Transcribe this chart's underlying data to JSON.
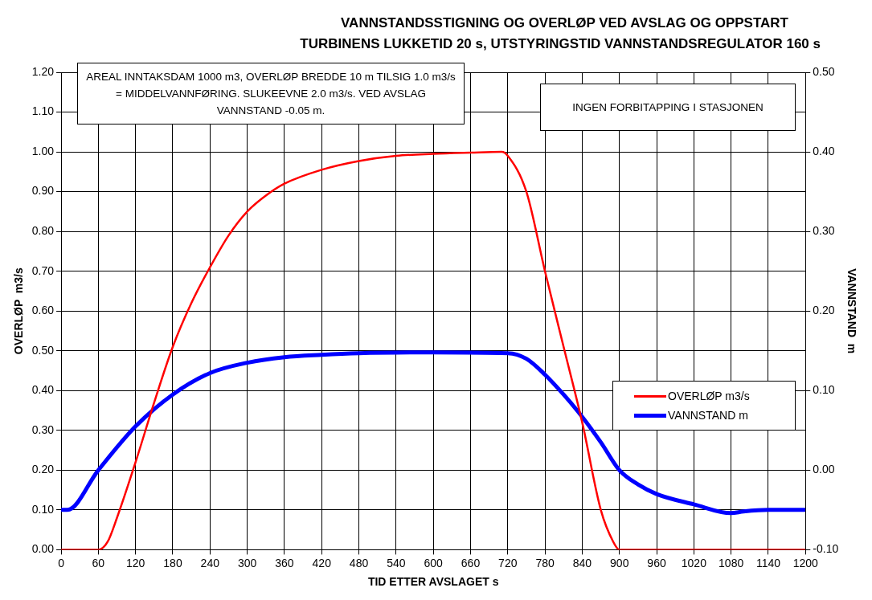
{
  "chart_data": {
    "type": "line",
    "title": "VANNSTANDSSTIGNING OG OVERLØP VED AVSLAG OG OPPSTART",
    "subtitle": "TURBINENS LUKKETID 20 s, UTSTYRINGSTID VANNSTANDSREGULATOR 160 s",
    "xlabel": "TID ETTER AVSLAGET s",
    "ylabel": "OVERLØP  m3/s",
    "y2label": "VANNSTAND  m",
    "annotations": [
      "AREAL INNTAKSDAM 1000 m3, OVERLØP BREDDE 10 m TILSIG 1.0 m3/s = MIDDELVANNFØRING. SLUKEEVNE 2.0 m3/s. VED AVSLAG VANNSTAND -0.05 m.",
      "INGEN FORBITAPPING I STASJONEN"
    ],
    "xlim": [
      0,
      1200
    ],
    "xticks": [
      0,
      60,
      120,
      180,
      240,
      300,
      360,
      420,
      480,
      540,
      600,
      660,
      720,
      780,
      840,
      900,
      960,
      1020,
      1080,
      1140,
      1200
    ],
    "ylim": [
      0,
      1.2
    ],
    "yticks": [
      {
        "value": 0,
        "label": "0.00"
      },
      {
        "value": 0.1,
        "label": "0.10"
      },
      {
        "value": 0.2,
        "label": "0.20"
      },
      {
        "value": 0.3,
        "label": "0.30"
      },
      {
        "value": 0.4,
        "label": "0.40"
      },
      {
        "value": 0.5,
        "label": "0.50"
      },
      {
        "value": 0.6,
        "label": "0.60"
      },
      {
        "value": 0.7,
        "label": "0.70"
      },
      {
        "value": 0.8,
        "label": "0.80"
      },
      {
        "value": 0.9,
        "label": "0.90"
      },
      {
        "value": 1,
        "label": "1.00"
      },
      {
        "value": 1.1,
        "label": "1.10"
      },
      {
        "value": 1.2,
        "label": "1.20"
      }
    ],
    "y2lim": [
      -0.1,
      0.5
    ],
    "y2ticks": [
      {
        "value": -0.1,
        "label": "-0.10"
      },
      {
        "value": 0,
        "label": "0.00"
      },
      {
        "value": 0.1,
        "label": "0.10"
      },
      {
        "value": 0.2,
        "label": "0.20"
      },
      {
        "value": 0.3,
        "label": "0.30"
      },
      {
        "value": 0.4,
        "label": "0.40"
      },
      {
        "value": 0.5,
        "label": "0.50"
      }
    ],
    "grid": true,
    "legend": "right",
    "marker": "none",
    "line_style": "solid",
    "series": [
      {
        "name": "OVERLØP m3/s",
        "color": "#ff0000",
        "x": [
          0,
          60,
          75,
          90,
          120,
          150,
          180,
          210,
          240,
          270,
          300,
          330,
          360,
          420,
          480,
          540,
          600,
          660,
          710,
          720,
          750,
          780,
          810,
          840,
          870,
          890,
          900,
          1200
        ],
        "values": [
          0,
          0,
          0.02,
          0.08,
          0.22,
          0.37,
          0.51,
          0.62,
          0.71,
          0.79,
          0.85,
          0.89,
          0.92,
          0.955,
          0.977,
          0.99,
          0.995,
          0.998,
          1.0,
          0.99,
          0.9,
          0.7,
          0.51,
          0.32,
          0.1,
          0.02,
          0,
          0
        ]
      },
      {
        "name": "VANNSTAND  m",
        "color": "#0000ff",
        "x": [
          0,
          10,
          60,
          120,
          180,
          240,
          300,
          360,
          420,
          480,
          600,
          720,
          750,
          780,
          810,
          840,
          870,
          900,
          930,
          960,
          1020,
          1080,
          1100,
          1140,
          1200
        ],
        "values": [
          -0.05,
          -0.05,
          0.0,
          0.055,
          0.095,
          0.122,
          0.135,
          0.142,
          0.145,
          0.147,
          0.148,
          0.147,
          0.14,
          0.12,
          0.095,
          0.067,
          0.035,
          0.0,
          -0.018,
          -0.03,
          -0.043,
          -0.054,
          -0.052,
          -0.05,
          -0.05
        ],
        "axis": "y2"
      }
    ]
  }
}
